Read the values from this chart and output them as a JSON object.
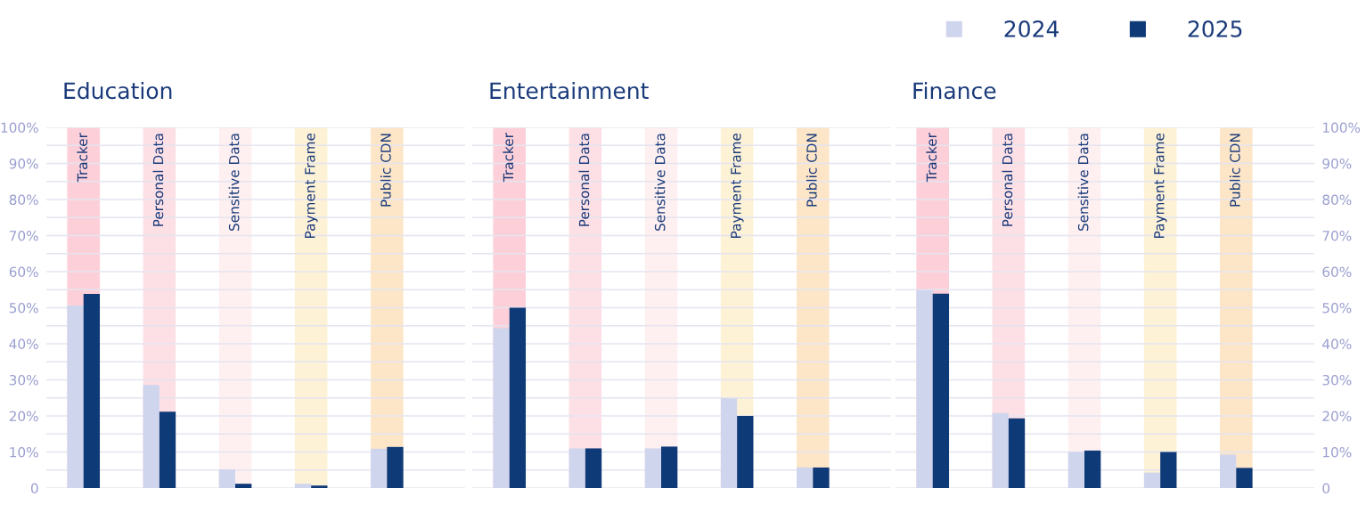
{
  "chart_data": [
    {
      "type": "bar",
      "title": "Education",
      "categories": [
        "Tracker",
        "Personal Data",
        "Sensitive Data",
        "Payment Frame",
        "Public CDN"
      ],
      "series": [
        {
          "name": "2024",
          "color": "#d0d5ee",
          "values": [
            50.6,
            28.6,
            5.2,
            1.2,
            10.9
          ]
        },
        {
          "name": "2025",
          "color": "#0f3a78",
          "values": [
            53.8,
            21.2,
            1.2,
            0.7,
            11.4
          ]
        }
      ],
      "bands": [
        {
          "axis": "x",
          "from": "Tracker",
          "to": "Tracker",
          "color": "#fdd0d9"
        },
        {
          "axis": "x",
          "from": "Personal Data",
          "to": "Personal Data",
          "color": "#fde0e5"
        },
        {
          "axis": "x",
          "from": "Sensitive Data",
          "to": "Sensitive Data",
          "color": "#fef0f0"
        },
        {
          "axis": "x",
          "from": "Payment Frame",
          "to": "Payment Frame",
          "color": "#fdf2d6"
        },
        {
          "axis": "x",
          "from": "Public CDN",
          "to": "Public CDN",
          "color": "#fde6c8"
        }
      ],
      "ylim": [
        0,
        100
      ],
      "yticks": [
        {
          "value": 0,
          "label": "0"
        },
        {
          "value": 5,
          "label": null
        },
        {
          "value": 10,
          "label": "10%"
        },
        {
          "value": 15,
          "label": null
        },
        {
          "value": 20,
          "label": "20%"
        },
        {
          "value": 25,
          "label": null
        },
        {
          "value": 30,
          "label": "30%"
        },
        {
          "value": 35,
          "label": null
        },
        {
          "value": 40,
          "label": "40%"
        },
        {
          "value": 45,
          "label": null
        },
        {
          "value": 50,
          "label": "50%"
        },
        {
          "value": 55,
          "label": null
        },
        {
          "value": 60,
          "label": "60%"
        },
        {
          "value": 65,
          "label": null
        },
        {
          "value": 70,
          "label": "70%"
        },
        {
          "value": 75,
          "label": null
        },
        {
          "value": 80,
          "label": "80%"
        },
        {
          "value": 85,
          "label": null
        },
        {
          "value": 90,
          "label": "90%"
        },
        {
          "value": 95,
          "label": null
        },
        {
          "value": 100,
          "label": "100%"
        }
      ],
      "grid": "y",
      "legend": "top right"
    },
    {
      "type": "bar",
      "title": "Entertainment",
      "categories": [
        "Tracker",
        "Personal Data",
        "Sensitive Data",
        "Payment Frame",
        "Public CDN"
      ],
      "series": [
        {
          "name": "2024",
          "color": "#d0d5ee",
          "values": [
            44.3,
            11.0,
            11.0,
            24.9,
            5.7
          ]
        },
        {
          "name": "2025",
          "color": "#0f3a78",
          "values": [
            50.0,
            11.0,
            11.5,
            20.0,
            5.7
          ]
        }
      ],
      "bands": [
        {
          "axis": "x",
          "from": "Tracker",
          "to": "Tracker",
          "color": "#fdd0d9"
        },
        {
          "axis": "x",
          "from": "Personal Data",
          "to": "Personal Data",
          "color": "#fde0e5"
        },
        {
          "axis": "x",
          "from": "Sensitive Data",
          "to": "Sensitive Data",
          "color": "#fef0f0"
        },
        {
          "axis": "x",
          "from": "Payment Frame",
          "to": "Payment Frame",
          "color": "#fdf2d6"
        },
        {
          "axis": "x",
          "from": "Public CDN",
          "to": "Public CDN",
          "color": "#fde6c8"
        }
      ],
      "ylim": [
        0,
        100
      ],
      "yticks": [
        {
          "value": 0,
          "label": null
        },
        {
          "value": 5,
          "label": null
        },
        {
          "value": 10,
          "label": null
        },
        {
          "value": 15,
          "label": null
        },
        {
          "value": 20,
          "label": null
        },
        {
          "value": 25,
          "label": null
        },
        {
          "value": 30,
          "label": null
        },
        {
          "value": 35,
          "label": null
        },
        {
          "value": 40,
          "label": null
        },
        {
          "value": 45,
          "label": null
        },
        {
          "value": 50,
          "label": null
        },
        {
          "value": 55,
          "label": null
        },
        {
          "value": 60,
          "label": null
        },
        {
          "value": 65,
          "label": null
        },
        {
          "value": 70,
          "label": null
        },
        {
          "value": 75,
          "label": null
        },
        {
          "value": 80,
          "label": null
        },
        {
          "value": 85,
          "label": null
        },
        {
          "value": 90,
          "label": null
        },
        {
          "value": 95,
          "label": null
        },
        {
          "value": 100,
          "label": null
        }
      ],
      "grid": "y",
      "tick_labels": "x"
    },
    {
      "type": "bar",
      "title": "Finance",
      "categories": [
        "Tracker",
        "Personal Data",
        "Sensitive Data",
        "Payment Frame",
        "Public CDN"
      ],
      "series": [
        {
          "name": "2024",
          "color": "#d0d5ee",
          "axis": "y2",
          "values": [
            54.9,
            20.8,
            10.0,
            4.3,
            9.3
          ]
        },
        {
          "name": "2025",
          "color": "#0f3a78",
          "axis": "y2",
          "values": [
            53.9,
            19.3,
            10.4,
            10.0,
            5.6
          ]
        }
      ],
      "bands": [
        {
          "axis": "x",
          "from": "Tracker",
          "to": "Tracker",
          "color": "#fdd0d9"
        },
        {
          "axis": "x",
          "from": "Personal Data",
          "to": "Personal Data",
          "color": "#fde0e5"
        },
        {
          "axis": "x",
          "from": "Sensitive Data",
          "to": "Sensitive Data",
          "color": "#fef0f0"
        },
        {
          "axis": "x",
          "from": "Payment Frame",
          "to": "Payment Frame",
          "color": "#fdf2d6"
        },
        {
          "axis": "x",
          "from": "Public CDN",
          "to": "Public CDN",
          "color": "#fde6c8"
        }
      ],
      "y2lim": [
        0,
        100
      ],
      "y2ticks": [
        {
          "value": 0,
          "label": "0"
        },
        {
          "value": 5,
          "label": null
        },
        {
          "value": 10,
          "label": "10%"
        },
        {
          "value": 15,
          "label": null
        },
        {
          "value": 20,
          "label": "20%"
        },
        {
          "value": 25,
          "label": null
        },
        {
          "value": 30,
          "label": "30%"
        },
        {
          "value": 35,
          "label": null
        },
        {
          "value": 40,
          "label": "40%"
        },
        {
          "value": 45,
          "label": null
        },
        {
          "value": 50,
          "label": "50%"
        },
        {
          "value": 55,
          "label": null
        },
        {
          "value": 60,
          "label": "60%"
        },
        {
          "value": 65,
          "label": null
        },
        {
          "value": 70,
          "label": "70%"
        },
        {
          "value": 75,
          "label": null
        },
        {
          "value": 80,
          "label": "80%"
        },
        {
          "value": 85,
          "label": null
        },
        {
          "value": 90,
          "label": "90%"
        },
        {
          "value": 95,
          "label": null
        },
        {
          "value": 100,
          "label": "100%"
        }
      ],
      "grid": "y"
    }
  ]
}
